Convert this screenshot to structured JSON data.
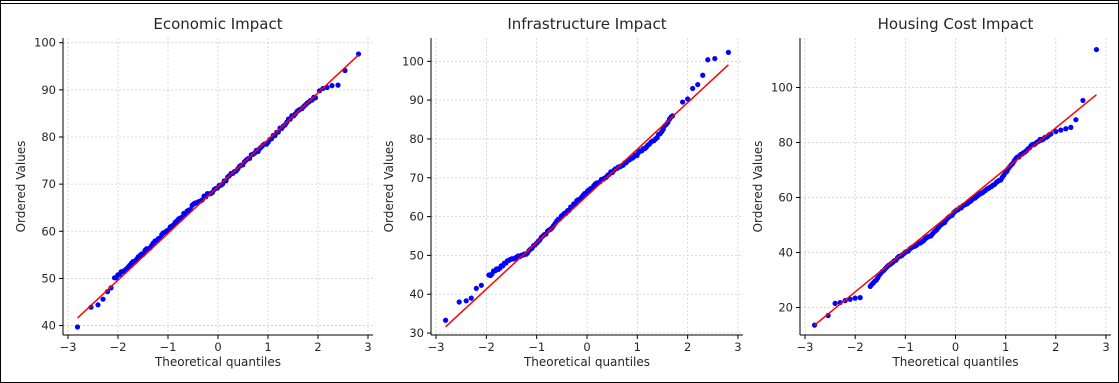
{
  "chart_data": [
    {
      "type": "scatter",
      "title": "Economic Impact",
      "xlabel": "Theoretical quantiles",
      "ylabel": "Ordered Values",
      "xlim": [
        -3.1,
        3.1
      ],
      "ylim": [
        38,
        101
      ],
      "xticks": [
        -3,
        -2,
        -1,
        0,
        1,
        2,
        3
      ],
      "yticks": [
        40,
        50,
        60,
        70,
        80,
        90,
        100
      ],
      "grid": true,
      "points_color": "#0000ff",
      "line_color": "#ff0000",
      "fit_line": {
        "x": [
          -2.81,
          2.81
        ],
        "y": [
          41.6,
          97.4
        ]
      },
      "tail_points": [
        {
          "x": -2.81,
          "y": 39.7
        },
        {
          "x": -2.54,
          "y": 43.9
        },
        {
          "x": -2.4,
          "y": 44.4
        },
        {
          "x": -2.3,
          "y": 45.6
        },
        {
          "x": -2.21,
          "y": 47.2
        },
        {
          "x": -2.14,
          "y": 48.0
        },
        {
          "x": 2.03,
          "y": 89.8
        },
        {
          "x": 2.1,
          "y": 90.3
        },
        {
          "x": 2.18,
          "y": 90.5
        },
        {
          "x": 2.28,
          "y": 90.9
        },
        {
          "x": 2.4,
          "y": 91.0
        },
        {
          "x": 2.54,
          "y": 94.1
        },
        {
          "x": 2.81,
          "y": 97.6
        }
      ],
      "core_points": [
        {
          "x": -2.07,
          "y": 50.0
        },
        {
          "x": -1.7,
          "y": 53.4
        },
        {
          "x": -1.3,
          "y": 57.3
        },
        {
          "x": -1.0,
          "y": 60.4
        },
        {
          "x": -0.5,
          "y": 65.4
        },
        {
          "x": 0.0,
          "y": 69.4
        },
        {
          "x": 0.5,
          "y": 74.4
        },
        {
          "x": 1.0,
          "y": 79.0
        },
        {
          "x": 1.3,
          "y": 82.4
        },
        {
          "x": 1.6,
          "y": 85.5
        },
        {
          "x": 1.95,
          "y": 88.5
        }
      ]
    },
    {
      "type": "scatter",
      "title": "Infrastructure Impact",
      "xlabel": "Theoretical quantiles",
      "ylabel": "Ordered Values",
      "xlim": [
        -3.1,
        3.1
      ],
      "ylim": [
        29.5,
        106
      ],
      "xticks": [
        -3,
        -2,
        -1,
        0,
        1,
        2,
        3
      ],
      "yticks": [
        30,
        40,
        50,
        60,
        70,
        80,
        90,
        100
      ],
      "grid": true,
      "points_color": "#0000ff",
      "line_color": "#ff0000",
      "fit_line": {
        "x": [
          -2.81,
          2.81
        ],
        "y": [
          31.6,
          99.1
        ]
      },
      "tail_points": [
        {
          "x": -2.81,
          "y": 33.3
        },
        {
          "x": -2.54,
          "y": 38.0
        },
        {
          "x": -2.4,
          "y": 38.3
        },
        {
          "x": -2.3,
          "y": 39.0
        },
        {
          "x": -2.2,
          "y": 41.5
        },
        {
          "x": -2.1,
          "y": 42.3
        },
        {
          "x": 1.9,
          "y": 89.5
        },
        {
          "x": 2.0,
          "y": 90.3
        },
        {
          "x": 2.1,
          "y": 93.0
        },
        {
          "x": 2.2,
          "y": 94.0
        },
        {
          "x": 2.3,
          "y": 96.4
        },
        {
          "x": 2.4,
          "y": 100.4
        },
        {
          "x": 2.54,
          "y": 100.7
        },
        {
          "x": 2.81,
          "y": 102.3
        }
      ],
      "core_points": [
        {
          "x": -1.95,
          "y": 44.8
        },
        {
          "x": -1.6,
          "y": 48.3
        },
        {
          "x": -1.2,
          "y": 50.5
        },
        {
          "x": -0.9,
          "y": 54.5
        },
        {
          "x": -0.5,
          "y": 60.0
        },
        {
          "x": 0.0,
          "y": 66.5
        },
        {
          "x": 0.5,
          "y": 71.5
        },
        {
          "x": 1.0,
          "y": 76.0
        },
        {
          "x": 1.4,
          "y": 80.5
        },
        {
          "x": 1.7,
          "y": 86.0
        }
      ]
    },
    {
      "type": "scatter",
      "title": "Housing Cost Impact",
      "xlabel": "Theoretical quantiles",
      "ylabel": "Ordered Values",
      "xlim": [
        -3.1,
        3.1
      ],
      "ylim": [
        10,
        118
      ],
      "xticks": [
        -3,
        -2,
        -1,
        0,
        1,
        2,
        3
      ],
      "yticks": [
        20,
        40,
        60,
        80,
        100
      ],
      "grid": true,
      "points_color": "#0000ff",
      "line_color": "#ff0000",
      "fit_line": {
        "x": [
          -2.81,
          2.81
        ],
        "y": [
          13.6,
          97.4
        ]
      },
      "tail_points": [
        {
          "x": -2.81,
          "y": 13.6
        },
        {
          "x": -2.54,
          "y": 17.1
        },
        {
          "x": -2.4,
          "y": 21.5
        },
        {
          "x": -2.3,
          "y": 21.8
        },
        {
          "x": -2.2,
          "y": 22.5
        },
        {
          "x": -2.1,
          "y": 23.0
        },
        {
          "x": -2.0,
          "y": 23.4
        },
        {
          "x": -1.9,
          "y": 23.6
        },
        {
          "x": 2.0,
          "y": 84.0
        },
        {
          "x": 2.1,
          "y": 84.5
        },
        {
          "x": 2.2,
          "y": 85.0
        },
        {
          "x": 2.3,
          "y": 85.5
        },
        {
          "x": 2.4,
          "y": 88.3
        },
        {
          "x": 2.54,
          "y": 95.3
        },
        {
          "x": 2.81,
          "y": 113.8
        }
      ],
      "core_points": [
        {
          "x": -1.7,
          "y": 27.5
        },
        {
          "x": -1.5,
          "y": 32.0
        },
        {
          "x": -1.3,
          "y": 36.0
        },
        {
          "x": -1.0,
          "y": 40.0
        },
        {
          "x": -0.5,
          "y": 46.0
        },
        {
          "x": 0.0,
          "y": 55.0
        },
        {
          "x": 0.5,
          "y": 61.5
        },
        {
          "x": 0.9,
          "y": 66.5
        },
        {
          "x": 1.2,
          "y": 74.0
        },
        {
          "x": 1.6,
          "y": 80.0
        },
        {
          "x": 1.9,
          "y": 83.0
        }
      ]
    }
  ]
}
